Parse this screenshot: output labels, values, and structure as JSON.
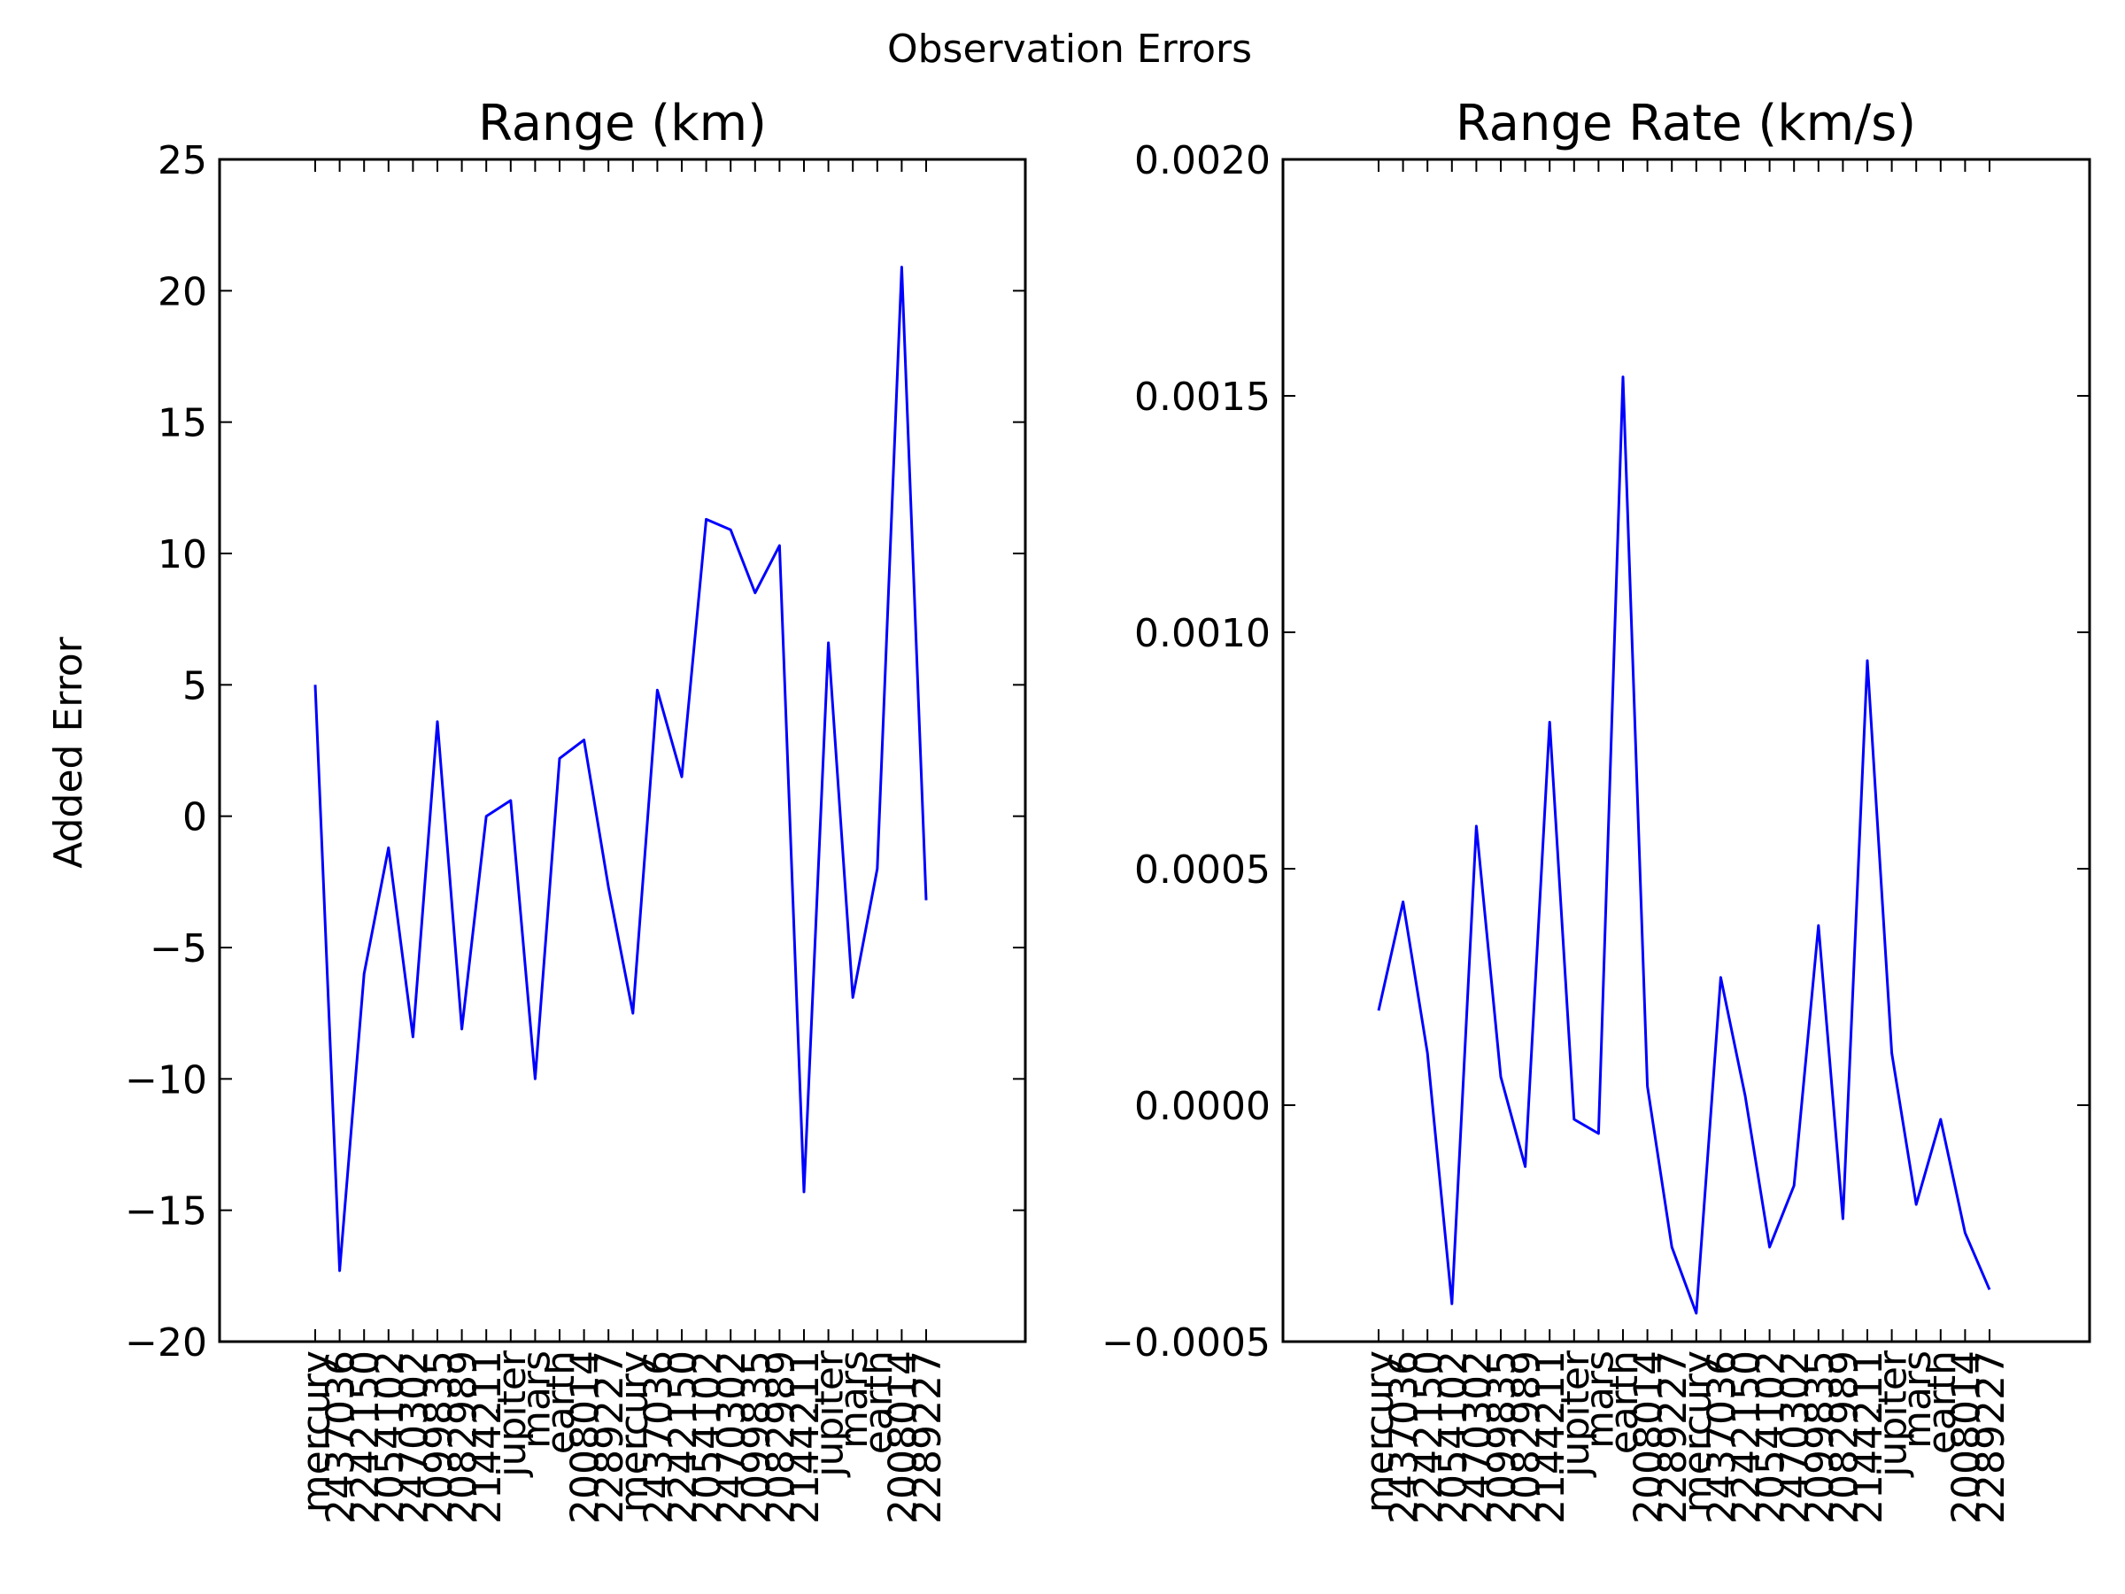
{
  "figure": {
    "suptitle": "Observation Errors",
    "line_color": "#0000ff"
  },
  "chart_data": [
    {
      "type": "line",
      "title": "Range (km)",
      "xlabel": "",
      "ylabel": "Added Error",
      "ylim": [
        -20,
        25
      ],
      "yticks": [
        -20,
        -15,
        -10,
        -5,
        0,
        5,
        10,
        15,
        20,
        25
      ],
      "ytick_labels": [
        "−20",
        "−15",
        "−10",
        "−5",
        "0",
        "5",
        "10",
        "15",
        "20",
        "25"
      ],
      "grid": false,
      "categories": [
        "mercury",
        "2437036",
        "2242150",
        "2054102",
        "2470302",
        "2099835",
        "2082989",
        "2144211",
        "jupiter",
        "mars",
        "earth",
        "2008014",
        "2289227",
        "mercury",
        "2437036",
        "2242150",
        "2054102",
        "2470302",
        "2099835",
        "2082989",
        "2144211",
        "jupiter",
        "mars",
        "earth",
        "2008014",
        "2289227"
      ],
      "series": [
        {
          "values": [
            5.0,
            -17.3,
            -6.0,
            -1.2,
            -8.4,
            3.6,
            -8.1,
            0.0,
            0.6,
            -10.0,
            2.2,
            2.9,
            -2.7,
            -7.5,
            4.8,
            1.5,
            11.3,
            10.9,
            8.5,
            10.3,
            -14.3,
            6.6,
            -6.9,
            -2.0,
            20.9,
            -3.2
          ]
        }
      ]
    },
    {
      "type": "line",
      "title": "Range Rate (km/s)",
      "xlabel": "",
      "ylabel": "",
      "ylim": [
        -0.0005,
        0.002
      ],
      "yticks": [
        -0.0005,
        0.0,
        0.0005,
        0.001,
        0.0015,
        0.002
      ],
      "ytick_labels": [
        "−0.0005",
        "0.0000",
        "0.0005",
        "0.0010",
        "0.0015",
        "0.0020"
      ],
      "grid": false,
      "categories": [
        "mercury",
        "2437036",
        "2242150",
        "2054102",
        "2470302",
        "2099835",
        "2082989",
        "2144211",
        "jupiter",
        "mars",
        "earth",
        "2008014",
        "2289227",
        "mercury",
        "2437036",
        "2242150",
        "2054102",
        "2470302",
        "2099835",
        "2082989",
        "2144211",
        "jupiter",
        "mars",
        "earth",
        "2008014",
        "2289227"
      ],
      "series": [
        {
          "values": [
            0.0002,
            0.00043,
            0.00011,
            -0.00042,
            0.00059,
            6e-05,
            -0.00013,
            0.00081,
            -3e-05,
            -6e-05,
            0.00154,
            4e-05,
            -0.0003,
            -0.00044,
            0.00027,
            2e-05,
            -0.0003,
            -0.00017,
            0.00038,
            -0.00024,
            0.00094,
            0.00011,
            -0.00021,
            -3e-05,
            -0.00027,
            -0.00039
          ]
        }
      ]
    }
  ]
}
